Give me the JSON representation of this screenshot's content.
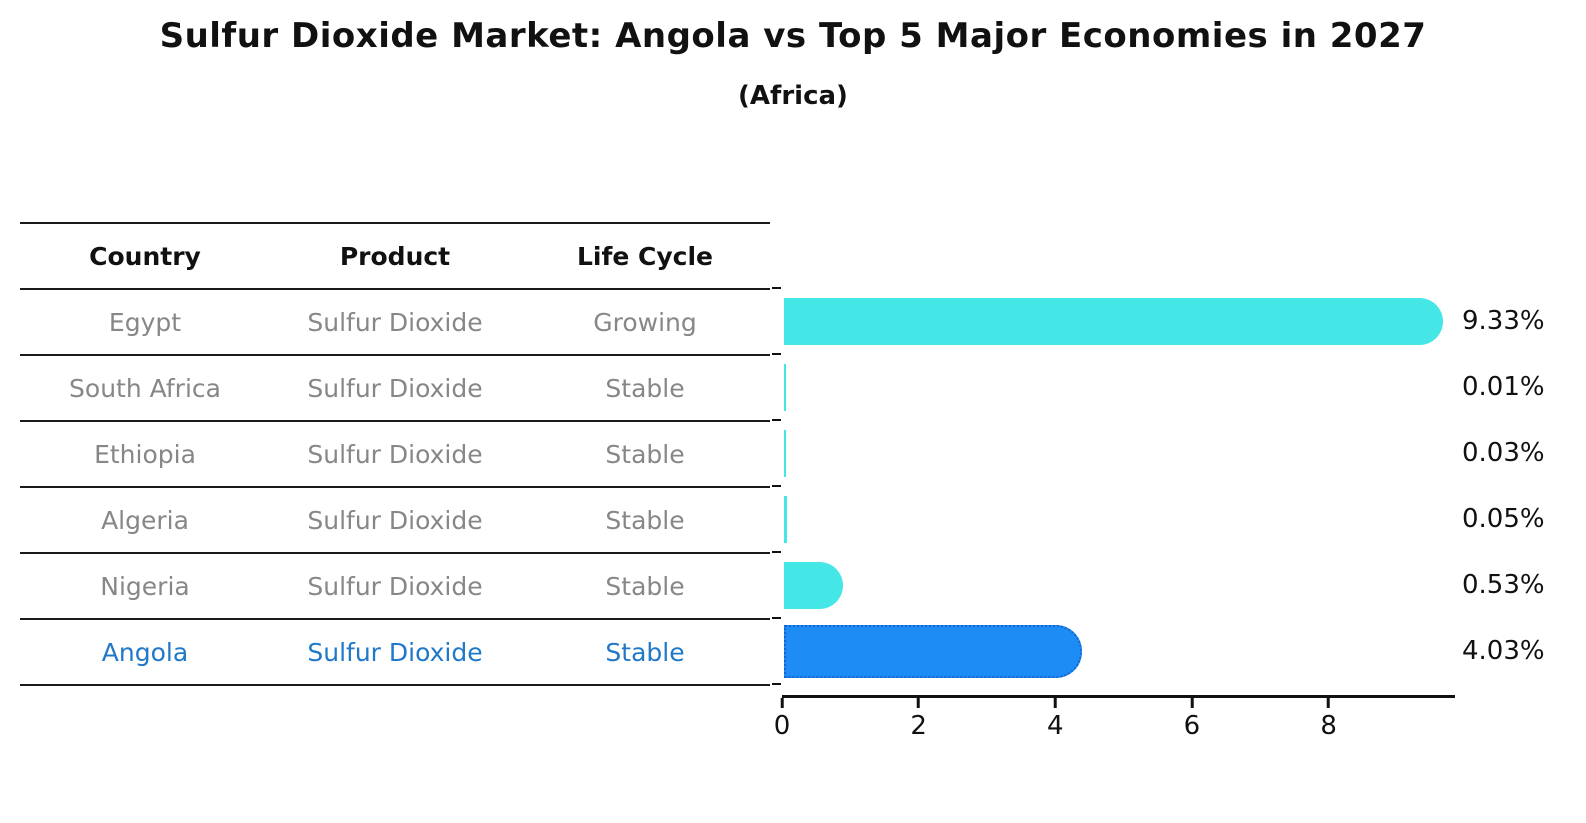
{
  "title": "Sulfur Dioxide Market: Angola vs Top 5 Major Economies in 2027",
  "subtitle": "(Africa)",
  "table": {
    "headers": [
      "Country",
      "Product",
      "Life Cycle"
    ],
    "rows": [
      {
        "country": "Egypt",
        "product": "Sulfur Dioxide",
        "life_cycle": "Growing",
        "highlight": false
      },
      {
        "country": "South Africa",
        "product": "Sulfur Dioxide",
        "life_cycle": "Stable",
        "highlight": false
      },
      {
        "country": "Ethiopia",
        "product": "Sulfur Dioxide",
        "life_cycle": "Stable",
        "highlight": false
      },
      {
        "country": "Algeria",
        "product": "Sulfur Dioxide",
        "life_cycle": "Stable",
        "highlight": false
      },
      {
        "country": "Nigeria",
        "product": "Sulfur Dioxide",
        "life_cycle": "Stable",
        "highlight": false
      },
      {
        "country": "Angola",
        "product": "Sulfur Dioxide",
        "life_cycle": "Stable",
        "highlight": true
      }
    ]
  },
  "chart_data": {
    "type": "bar",
    "orientation": "horizontal",
    "title": "Sulfur Dioxide Market: Angola vs Top 5 Major Economies in 2027 (Africa)",
    "xlabel": "",
    "ylabel": "",
    "categories": [
      "Egypt",
      "South Africa",
      "Ethiopia",
      "Algeria",
      "Nigeria",
      "Angola"
    ],
    "values": [
      9.33,
      0.01,
      0.03,
      0.05,
      0.53,
      4.03
    ],
    "value_labels": [
      "9.33%",
      "0.01%",
      "0.03%",
      "0.05%",
      "0.53%",
      "4.03%"
    ],
    "xticks": [
      "0",
      "2",
      "4",
      "6",
      "8"
    ],
    "xtick_values": [
      0,
      2,
      4,
      6,
      8
    ],
    "xlim": [
      0,
      9.85
    ],
    "grid": false,
    "legend": false,
    "bar_color": "#45E6E6",
    "highlight_index": 5,
    "highlight_bar_color": "#1E8CF5",
    "highlight_border_color": "#1565D0"
  },
  "colors": {
    "text_primary": "#111111",
    "text_muted": "#878787",
    "highlight_text": "#1F78C8"
  }
}
